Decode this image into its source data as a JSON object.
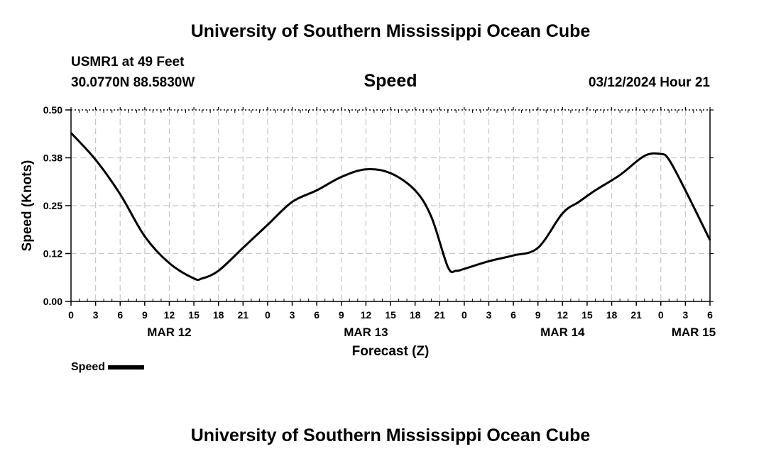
{
  "header": {
    "title": "University of Southern Mississippi Ocean Cube",
    "station": "USMR1 at 49 Feet",
    "coords": "30.0770N  88.5830W",
    "parameter": "Speed",
    "date": "03/12/2024 Hour 21"
  },
  "footer": {
    "title": "University of Southern Mississippi Ocean Cube"
  },
  "legend": {
    "label": "Speed",
    "color": "#000000"
  },
  "chart_data": {
    "type": "line",
    "title": "Speed",
    "xlabel": "Forecast (Z)",
    "ylabel": "Speed (Knots)",
    "xlim": [
      0,
      78
    ],
    "ylim": [
      0,
      0.5
    ],
    "grid": true,
    "y_ticks": [
      0.0,
      0.125,
      0.25,
      0.375,
      0.5
    ],
    "y_tick_labels": [
      "0.00",
      "0.12",
      "0.25",
      "0.38",
      "0.50"
    ],
    "x_ticks": [
      0,
      3,
      6,
      9,
      12,
      15,
      18,
      21,
      24,
      27,
      30,
      33,
      36,
      39,
      42,
      45,
      48,
      51,
      54,
      57,
      60,
      63,
      66,
      69,
      72,
      75,
      78
    ],
    "x_tick_labels": [
      "0",
      "3",
      "6",
      "9",
      "12",
      "15",
      "18",
      "21",
      "0",
      "3",
      "6",
      "9",
      "12",
      "15",
      "18",
      "21",
      "0",
      "3",
      "6",
      "9",
      "12",
      "15",
      "18",
      "21",
      "0",
      "3",
      "6"
    ],
    "date_labels": [
      {
        "x": 12,
        "label": "MAR 12"
      },
      {
        "x": 36,
        "label": "MAR 13"
      },
      {
        "x": 60,
        "label": "MAR 14"
      },
      {
        "x": 76,
        "label": "MAR 15"
      }
    ],
    "series": [
      {
        "name": "Speed",
        "color": "#000000",
        "x": [
          0,
          3,
          6,
          9,
          12,
          15,
          16,
          18,
          21,
          24,
          27,
          30,
          33,
          36,
          39,
          42,
          44,
          46,
          47,
          48,
          51,
          54,
          57,
          60,
          62,
          64,
          67,
          70,
          72,
          73,
          75,
          78
        ],
        "y": [
          0.44,
          0.37,
          0.28,
          0.17,
          0.1,
          0.06,
          0.06,
          0.08,
          0.14,
          0.2,
          0.26,
          0.29,
          0.325,
          0.345,
          0.335,
          0.29,
          0.22,
          0.09,
          0.08,
          0.085,
          0.105,
          0.12,
          0.14,
          0.23,
          0.26,
          0.29,
          0.33,
          0.38,
          0.385,
          0.37,
          0.29,
          0.16
        ]
      }
    ]
  }
}
